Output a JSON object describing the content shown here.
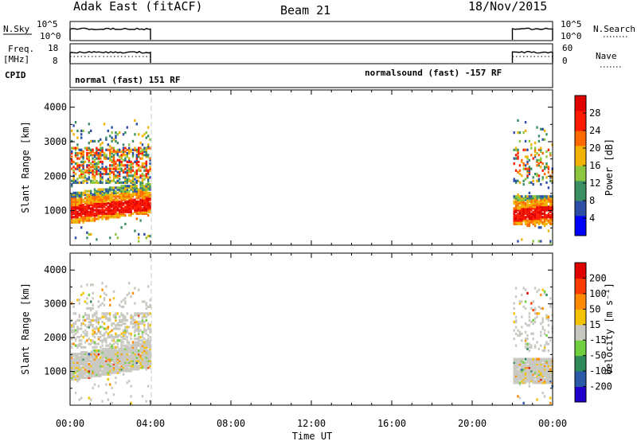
{
  "header": {
    "station": "Adak East (fitACF)",
    "beam": "Beam 21",
    "date": "18/Nov/2015"
  },
  "labels": {
    "nsky": "N.Sky",
    "freq_line1": "Freq.",
    "freq_line2": "[MHz]",
    "cpid": "CPID",
    "nsearch": "N.Search",
    "nave": "Nave"
  },
  "cpid": {
    "left": "normal (fast) 151 RF",
    "right": "normalsound (fast) -157 RF"
  },
  "chart_data": [
    {
      "type": "line",
      "panel": "nsky-nsearch",
      "y_left_ticks": [
        "10^5",
        "10^0"
      ],
      "y_right_ticks": [
        "10^5",
        "10^0"
      ],
      "segments": [
        [
          "00:00",
          "04:00"
        ],
        [
          "22:00",
          "24:00"
        ]
      ]
    },
    {
      "type": "line",
      "panel": "freq-nave",
      "y_left_ticks": [
        "18",
        "8"
      ],
      "y_right_ticks": [
        "60",
        "0"
      ],
      "segments": [
        [
          "00:00",
          "04:00"
        ],
        [
          "22:00",
          "24:00"
        ]
      ]
    },
    {
      "type": "heatmap",
      "panel": "power",
      "ylabel": "Slant Range [km]",
      "ylim": [
        0,
        4500
      ],
      "y_ticks": [
        "1000",
        "2000",
        "3000",
        "4000"
      ],
      "colorbar_label": "Power [dB]",
      "colorbar_ticks": [
        "28",
        "24",
        "20",
        "16",
        "12",
        "8",
        "4"
      ],
      "colors": [
        "#0000ff",
        "#2c4ea6",
        "#3a8f63",
        "#8dc63f",
        "#f2b300",
        "#ff6a00",
        "#ff1a00",
        "#e00000"
      ]
    },
    {
      "type": "heatmap",
      "panel": "velocity",
      "ylabel": "Slant Range [km]",
      "ylim": [
        0,
        4500
      ],
      "y_ticks": [
        "1000",
        "2000",
        "3000",
        "4000"
      ],
      "colorbar_label": "Velocity [m s⁻¹]",
      "colorbar_ticks": [
        "200",
        "100",
        "50",
        "15",
        "-15",
        "-50",
        "-100",
        "-200"
      ],
      "colors": [
        "#2200cc",
        "#2a5aa8",
        "#2f8a5a",
        "#6fcf3f",
        "#c8c8c0",
        "#f5c200",
        "#ff8a00",
        "#ff3a00",
        "#e00000"
      ]
    }
  ],
  "x_axis": {
    "ticks": [
      "00:00",
      "04:00",
      "08:00",
      "12:00",
      "16:00",
      "20:00",
      "00:00"
    ],
    "label": "Time UT",
    "range_hours": [
      0,
      24
    ]
  }
}
